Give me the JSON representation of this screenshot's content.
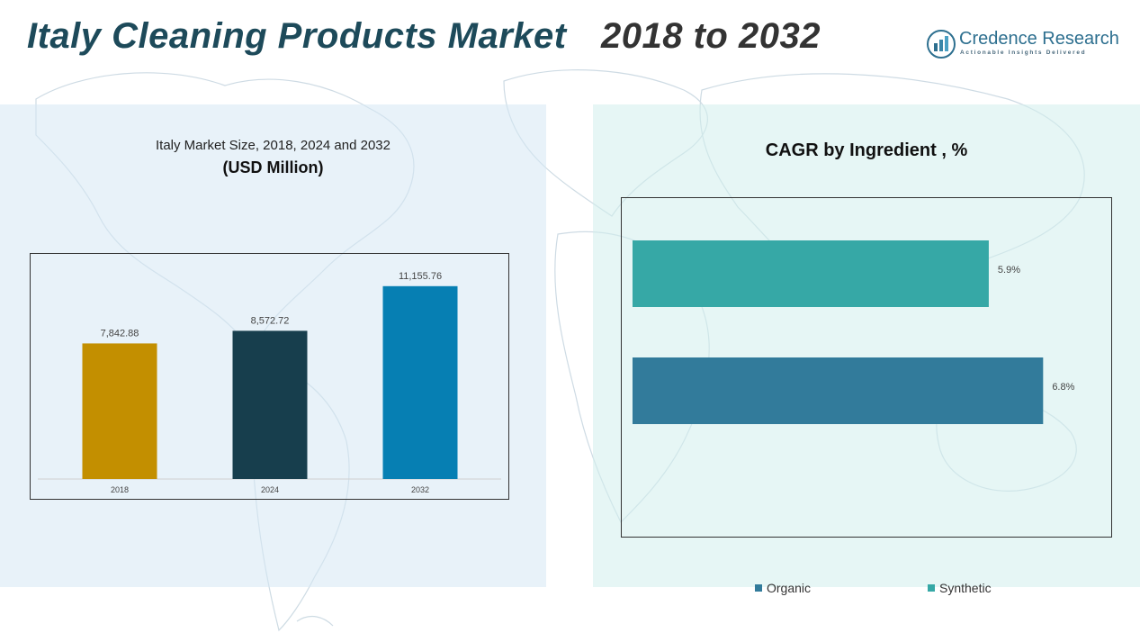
{
  "header": {
    "title_main": "Italy Cleaning Products Market",
    "title_years": "2018 to 2032",
    "title_main_color": "#1d4a5a",
    "title_years_color": "#333333"
  },
  "logo": {
    "name": "Credence Research",
    "tagline": "Actionable Insights Delivered",
    "icon": "bar-chart-logo-icon"
  },
  "left_panel": {
    "title": "Italy Market Size, 2018, 2024 and 2032",
    "unit": "(USD Million)"
  },
  "right_panel": {
    "title": "CAGR by Ingredient , %"
  },
  "chart_data": [
    {
      "type": "bar",
      "orientation": "vertical",
      "categories": [
        "2018",
        "2024",
        "2032"
      ],
      "values": [
        7842.88,
        8572.72,
        11155.76
      ],
      "value_labels": [
        "7,842.88",
        "8,572.72",
        "11,155.76"
      ],
      "colors": [
        "#c38f00",
        "#173e4d",
        "#067fb3"
      ],
      "ylim": [
        0,
        12500
      ],
      "grid": false
    },
    {
      "type": "bar",
      "orientation": "horizontal",
      "categories": [
        "Synthetic",
        "Organic"
      ],
      "values": [
        5.9,
        6.8
      ],
      "value_labels": [
        "5.9%",
        "6.8%"
      ],
      "colors": [
        "#36a8a6",
        "#327b9b"
      ],
      "xlim": [
        0,
        7.6
      ],
      "grid": false,
      "legend": {
        "position": "bottom",
        "items": [
          {
            "label": "Organic",
            "color": "#327b9b"
          },
          {
            "label": "Synthetic",
            "color": "#36a8a6"
          }
        ]
      }
    }
  ]
}
